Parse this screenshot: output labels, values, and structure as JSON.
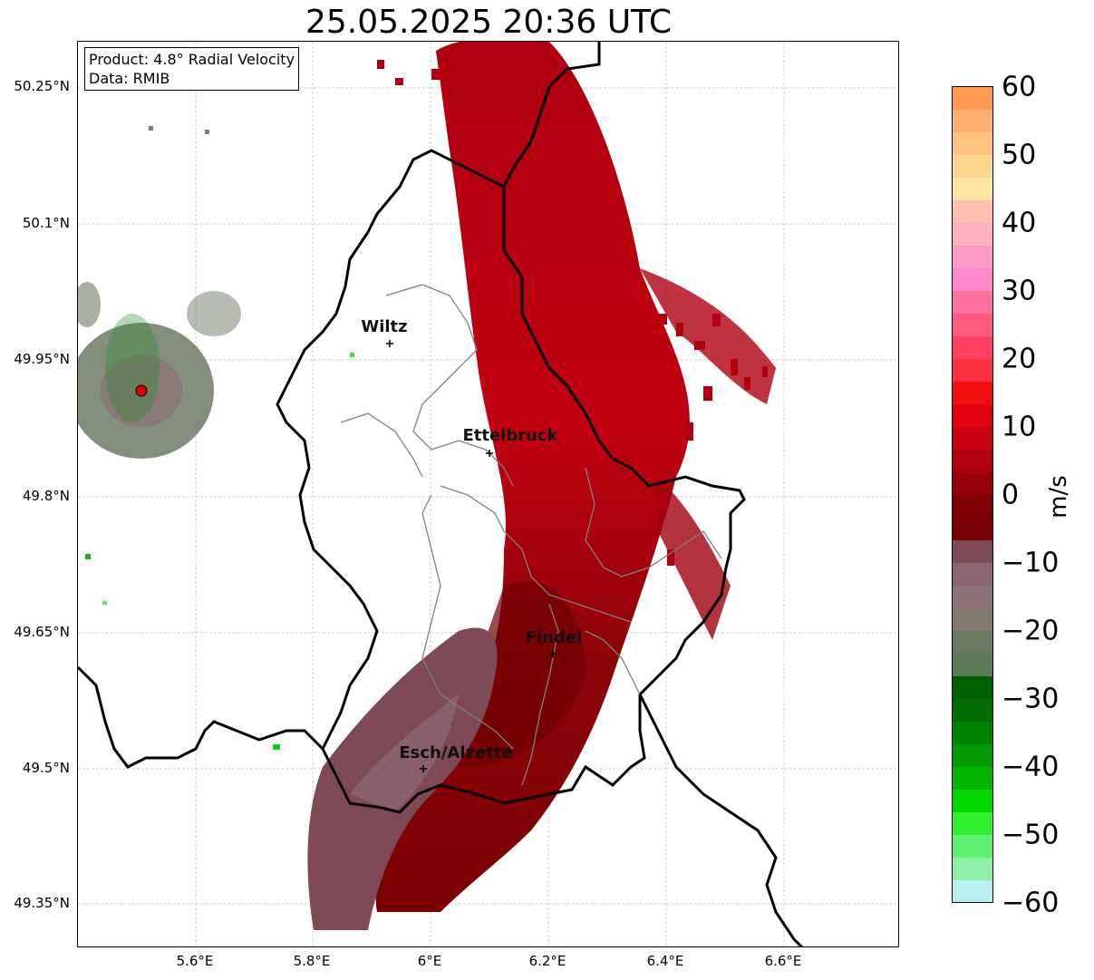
{
  "title": "25.05.2025 20:36 UTC",
  "info": {
    "product": "Product: 4.8° Radial Velocity",
    "source": "Data: RMIB"
  },
  "axes": {
    "lat_ticks": [
      "50.25°N",
      "50.1°N",
      "49.95°N",
      "49.8°N",
      "49.65°N",
      "49.5°N",
      "49.35°N"
    ],
    "lon_ticks": [
      "5.6°E",
      "5.8°E",
      "6°E",
      "6.2°E",
      "6.4°E",
      "6.6°E"
    ]
  },
  "cities": [
    {
      "name": "Wiltz"
    },
    {
      "name": "Ettelbruck"
    },
    {
      "name": "Findel"
    },
    {
      "name": "Esch/Alzette"
    }
  ],
  "colorbar": {
    "label": "m/s",
    "ticks": [
      "60",
      "50",
      "40",
      "30",
      "20",
      "10",
      "0",
      "−10",
      "−20",
      "−30",
      "−40",
      "−50",
      "−60"
    ],
    "range": [
      -60,
      60
    ]
  },
  "colors": {
    "strong_inbound": "#8b0000",
    "outbound_red": "#c00010",
    "near_zero": "#7d4a55",
    "zero_grey": "#7a7a6e",
    "green": "#009900"
  }
}
